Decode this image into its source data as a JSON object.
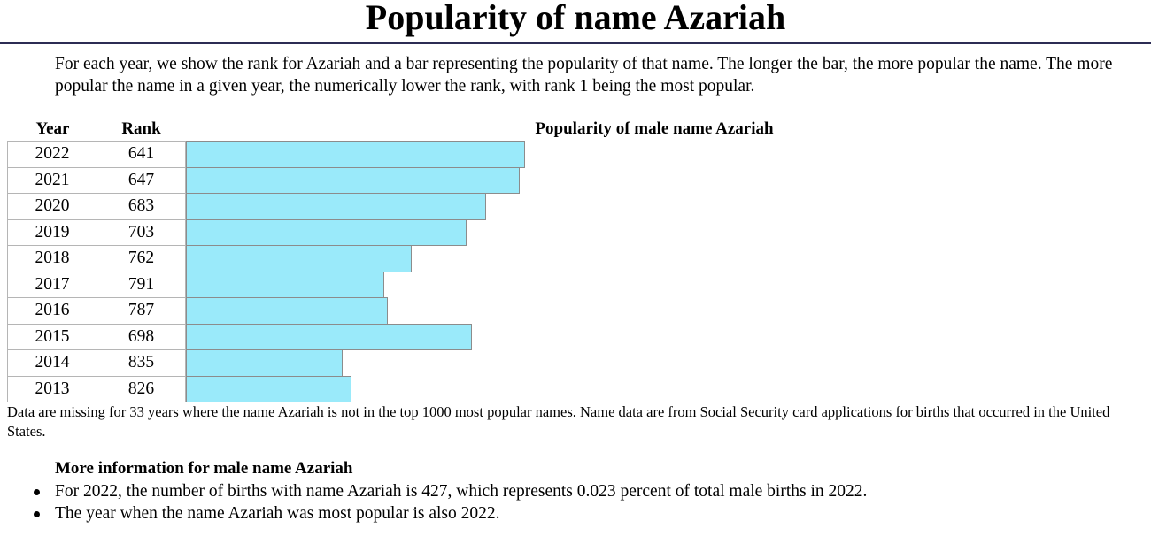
{
  "page": {
    "title": "Popularity of name Azariah",
    "intro": "For each year, we show the rank for Azariah and a bar representing the popularity of that name. The longer the bar, the more popular the name. The more popular the name in a given year, the numerically lower the rank, with rank 1 being the most popular."
  },
  "table": {
    "year_header": "Year",
    "rank_header": "Rank",
    "chart_title": "Popularity of male name Azariah"
  },
  "chart_data": {
    "type": "bar",
    "title": "Popularity of male name Azariah",
    "categories": [
      "2022",
      "2021",
      "2020",
      "2019",
      "2018",
      "2017",
      "2016",
      "2015",
      "2014",
      "2013"
    ],
    "ranks": [
      641,
      647,
      683,
      703,
      762,
      791,
      787,
      698,
      835,
      826
    ],
    "bar_color": "#9aeafa"
  },
  "footnote": "Data are missing for 33 years where the name Azariah is not in the top 1000 most popular names. Name data are from Social Security card applications for births that occurred in the United States.",
  "more_info": {
    "title": "More information for male name Azariah",
    "items": [
      "For 2022, the number of births with name Azariah is 427, which represents 0.023 percent of total male births in 2022.",
      "The year when the name Azariah was most popular is also 2022."
    ]
  }
}
